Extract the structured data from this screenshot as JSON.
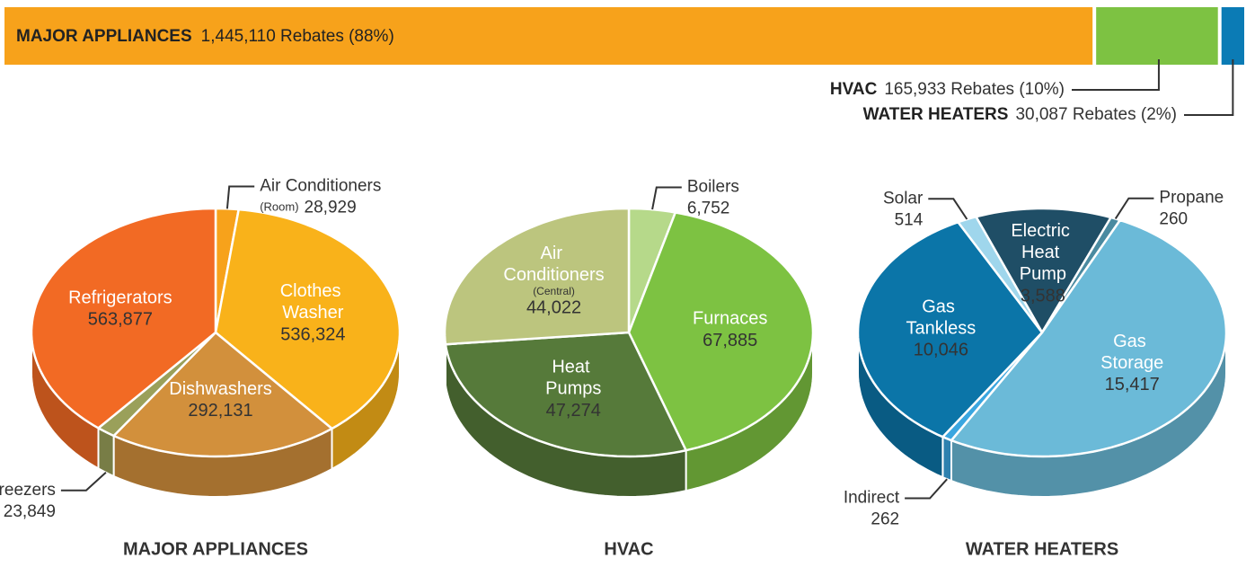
{
  "chart_data": [
    {
      "type": "stacked_bar",
      "series": [
        {
          "name": "MAJOR APPLIANCES",
          "color": "#f7a21b",
          "values": [
            1445110
          ],
          "value_labels": [
            "1,445,110 Rebates (88%)"
          ]
        },
        {
          "name": "HVAC",
          "color": "#7dc242",
          "values": [
            165933
          ],
          "value_labels": [
            "165,933 Rebates (10%)"
          ]
        },
        {
          "name": "WATER HEATERS",
          "color": "#0b7bb5",
          "values": [
            30087
          ],
          "value_labels": [
            "30,087 Rebates (2%)"
          ]
        }
      ]
    },
    {
      "type": "pie",
      "title": "MAJOR APPLIANCES",
      "categories": [
        "Air Conditioners",
        "Clothes Washer",
        "Dishwashers",
        "Freezers",
        "Refrigerators"
      ],
      "sublabels": [
        "(Room)",
        null,
        null,
        null,
        null
      ],
      "values": [
        28929,
        536324,
        292131,
        23849,
        563877
      ],
      "value_labels": [
        "28,929",
        "536,324",
        "292,131",
        "23,849",
        "563,877"
      ],
      "colors": [
        "#f7a21b",
        "#f9b21a",
        "#d2903c",
        "#9aa05a",
        "#f26a24"
      ]
    },
    {
      "type": "pie",
      "title": "HVAC",
      "categories": [
        "Boilers",
        "Furnaces",
        "Heat Pumps",
        "Air Conditioners"
      ],
      "sublabels": [
        null,
        null,
        null,
        "(Central)"
      ],
      "values": [
        6752,
        67885,
        47274,
        44022
      ],
      "value_labels": [
        "6,752",
        "67,885",
        "47,274",
        "44,022"
      ],
      "colors": [
        "#b6d98a",
        "#7dc242",
        "#567a3a",
        "#bcc57e"
      ]
    },
    {
      "type": "pie",
      "title": "WATER HEATERS",
      "categories": [
        "Electric Heat Pump",
        "Propane",
        "Gas Storage",
        "Indirect",
        "Gas Tankless",
        "Solar"
      ],
      "sublabels": [
        null,
        null,
        null,
        null,
        null,
        null
      ],
      "values": [
        3588,
        260,
        15417,
        262,
        10046,
        514
      ],
      "value_labels": [
        "3,588",
        "260",
        "15,417",
        "262",
        "10,046",
        "514"
      ],
      "colors": [
        "#1f4e66",
        "#4a8aa0",
        "#6bbad8",
        "#3aa6e0",
        "#0b75a8",
        "#9fd6ec"
      ]
    }
  ]
}
